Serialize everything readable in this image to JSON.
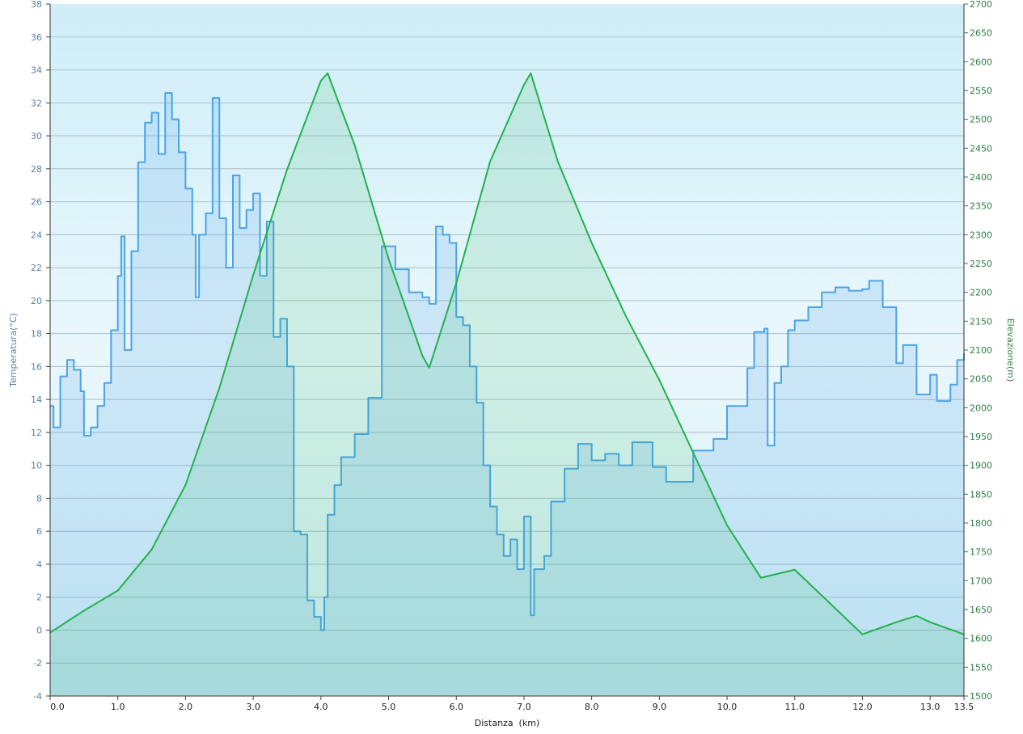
{
  "chart_data": {
    "type": "line",
    "xlabel": "Distanza  (km)",
    "ylabel_left": "Temperatura(°C)",
    "ylabel_right": "Elevazione(m)",
    "xlim": [
      0,
      13.5
    ],
    "ylim_left": [
      -4,
      38
    ],
    "ylim_right": [
      1500,
      2700
    ],
    "x_ticks": [
      "0.0",
      "1.0",
      "2.0",
      "3.0",
      "4.0",
      "5.0",
      "6.0",
      "7.0",
      "8.0",
      "9.0",
      "10.0",
      "11.0",
      "12.0",
      "13.0",
      "13.5"
    ],
    "y_left_ticks": [
      -4,
      -2,
      0,
      2,
      4,
      6,
      8,
      10,
      12,
      14,
      16,
      18,
      20,
      22,
      24,
      26,
      28,
      30,
      32,
      34,
      36,
      38
    ],
    "y_right_ticks": [
      1500,
      1550,
      1600,
      1650,
      1700,
      1750,
      1800,
      1850,
      1900,
      1950,
      2000,
      2050,
      2100,
      2150,
      2200,
      2250,
      2300,
      2350,
      2400,
      2450,
      2500,
      2550,
      2600,
      2650,
      2700
    ],
    "grid": true,
    "colors": {
      "temperature": "#4da3e6",
      "elevation": "#22b14c",
      "background_top": "#d0eff8",
      "background_bottom": "#e6f6fb"
    },
    "series": [
      {
        "axis": "left",
        "style": "step",
        "x": [
          0,
          0.05,
          0.15,
          0.25,
          0.35,
          0.45,
          0.5,
          0.6,
          0.7,
          0.8,
          0.9,
          1.0,
          1.05,
          1.1,
          1.2,
          1.3,
          1.4,
          1.5,
          1.6,
          1.7,
          1.8,
          1.9,
          2.0,
          2.1,
          2.15,
          2.2,
          2.3,
          2.4,
          2.5,
          2.6,
          2.7,
          2.8,
          2.9,
          3.0,
          3.1,
          3.2,
          3.3,
          3.4,
          3.5,
          3.6,
          3.7,
          3.8,
          3.9,
          4.0,
          4.05,
          4.1,
          4.2,
          4.3,
          4.5,
          4.7,
          4.9,
          5.1,
          5.3,
          5.5,
          5.6,
          5.7,
          5.8,
          5.9,
          6.0,
          6.1,
          6.2,
          6.3,
          6.4,
          6.5,
          6.6,
          6.7,
          6.8,
          6.9,
          7.0,
          7.1,
          7.15,
          7.3,
          7.4,
          7.6,
          7.8,
          8.0,
          8.2,
          8.4,
          8.6,
          8.9,
          9.1,
          9.5,
          9.8,
          10.0,
          10.3,
          10.4,
          10.55,
          10.6,
          10.7,
          10.8,
          10.9,
          11.0,
          11.2,
          11.4,
          11.6,
          11.8,
          12.0,
          12.1,
          12.3,
          12.5,
          12.6,
          12.8,
          13.0,
          13.1,
          13.3,
          13.4,
          13.5
        ],
        "y": [
          13.6,
          12.3,
          15.4,
          16.4,
          15.8,
          14.5,
          11.8,
          12.3,
          13.6,
          15,
          18.2,
          21.5,
          23.9,
          17,
          23,
          28.4,
          30.8,
          31.4,
          28.9,
          32.6,
          31,
          29,
          26.8,
          24,
          20.2,
          24,
          25.3,
          32.3,
          25,
          22,
          27.6,
          24.4,
          25.5,
          26.5,
          21.5,
          24.8,
          17.8,
          18.9,
          16,
          6,
          5.8,
          1.8,
          0.8,
          0,
          2,
          7,
          8.8,
          10.5,
          11.9,
          14.1,
          23.3,
          21.9,
          20.5,
          20.2,
          19.8,
          24.5,
          24,
          23.5,
          19,
          18.5,
          16,
          13.8,
          10,
          7.5,
          5.8,
          4.5,
          5.5,
          3.7,
          6.9,
          0.9,
          3.7,
          4.5,
          7.8,
          9.8,
          11.3,
          10.3,
          10.7,
          10,
          11.4,
          9.9,
          9,
          10.9,
          11.6,
          13.6,
          15.9,
          18.1,
          18.3,
          11.2,
          15,
          16,
          18.2,
          18.8,
          19.6,
          20.5,
          20.8,
          20.6,
          20.7,
          21.2,
          19.6,
          16.2,
          17.3,
          14.3,
          15.5,
          13.9,
          14.9,
          16.4,
          16.8
        ]
      },
      {
        "axis": "right",
        "style": "line",
        "x": [
          0,
          0.5,
          1.0,
          1.5,
          2.0,
          2.5,
          3.0,
          3.5,
          4.0,
          4.1,
          4.5,
          5.0,
          5.5,
          5.6,
          6.0,
          6.5,
          7.0,
          7.1,
          7.5,
          8.0,
          8.5,
          9.0,
          9.5,
          10.0,
          10.5,
          11.0,
          11.5,
          12.0,
          12.5,
          12.8,
          13.0,
          13.5
        ],
        "y": [
          1610,
          1648,
          1683,
          1754,
          1866,
          2034,
          2230,
          2413,
          2567,
          2580,
          2455,
          2258,
          2090,
          2069,
          2216,
          2427,
          2560,
          2580,
          2427,
          2286,
          2160,
          2048,
          1922,
          1796,
          1705,
          1719,
          1663,
          1607,
          1628,
          1639,
          1628,
          1607
        ]
      }
    ]
  }
}
